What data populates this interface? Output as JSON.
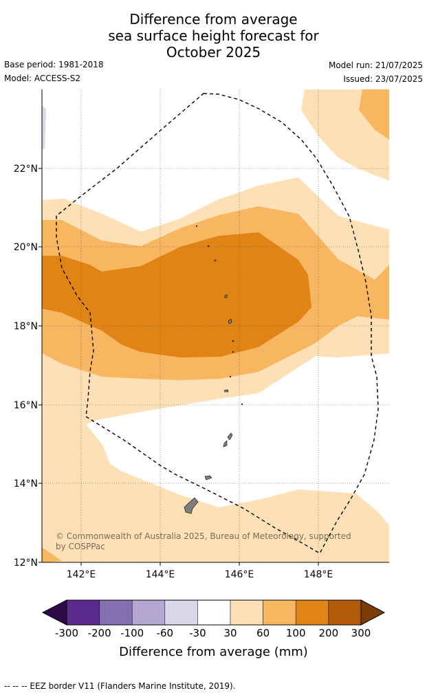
{
  "title": {
    "line1": "Difference from average",
    "line2": "sea surface height forecast for",
    "line3": "October 2025"
  },
  "meta": {
    "base_period": "Base period: 1981-2018",
    "model": "Model: ACCESS-S2",
    "model_run": "Model run: 21/07/2025",
    "issued": "Issued: 23/07/2025"
  },
  "map": {
    "lat_labels": [
      "22°N",
      "20°N",
      "18°N",
      "16°N",
      "14°N",
      "12°N"
    ],
    "lon_labels": [
      "142°E",
      "144°E",
      "146°E",
      "148°E"
    ],
    "copyright_line1": "© Commonwealth of Australia 2025, Bureau of Meteorology, supported",
    "copyright_line2": "by COSPPac",
    "extent": {
      "lon_min": 141.0,
      "lon_max": 149.8,
      "lat_min": 12.0,
      "lat_max": 24.0
    },
    "colors": {
      "c30": "#fde0b5",
      "c60": "#f9b660",
      "c100": "#e08416",
      "c200": "#b35a09",
      "land": "#7f7f7f",
      "ice": "#d8d8e8"
    }
  },
  "colorbar": {
    "title": "Difference from average (mm)",
    "ticks": [
      "-300",
      "-200",
      "-100",
      "-60",
      "-30",
      "30",
      "60",
      "100",
      "200",
      "300"
    ],
    "colors": [
      "#2e0a4a",
      "#5b2a8c",
      "#8470b0",
      "#b2a8d2",
      "#d8d8ea",
      "#ffffff",
      "#fde0b5",
      "#f9b660",
      "#e08416",
      "#b35a09",
      "#7c3c07"
    ]
  },
  "footer": "--  --  -- EEZ border V11 (Flanders Marine Institute, 2019)."
}
